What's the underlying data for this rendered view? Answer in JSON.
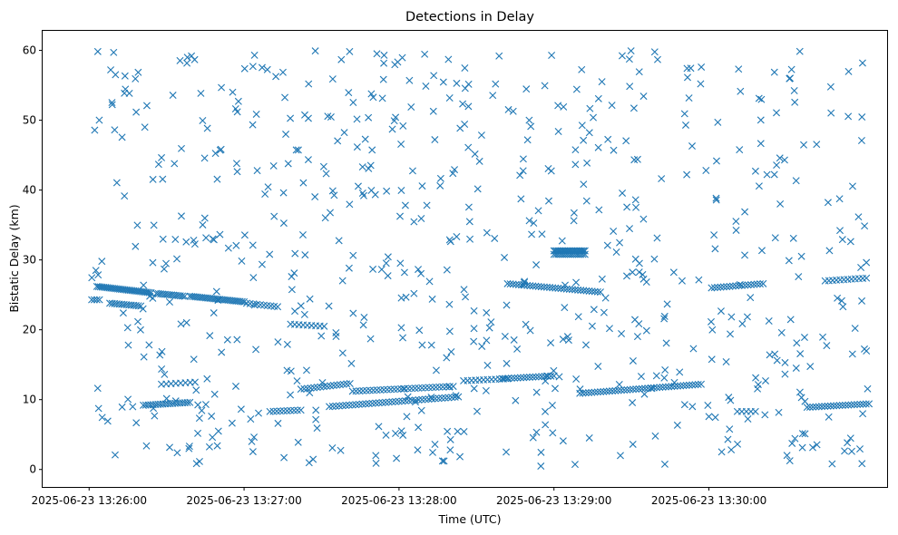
{
  "chart_data": {
    "type": "scatter",
    "title": "Detections in Delay",
    "xlabel": "Time (UTC)",
    "ylabel": "Bistatic Delay (km)",
    "x_unit": "seconds after 2025-06-23 13:25:00",
    "xlim": [
      42,
      369
    ],
    "ylim": [
      -2.5,
      62.8
    ],
    "grid": false,
    "legend": null,
    "marker": "x",
    "color": "#1f77b4",
    "xticks": [
      {
        "value": 60,
        "label": "2025-06-23 13:26:00"
      },
      {
        "value": 120,
        "label": "2025-06-23 13:27:00"
      },
      {
        "value": 180,
        "label": "2025-06-23 13:28:00"
      },
      {
        "value": 240,
        "label": "2025-06-23 13:29:00"
      },
      {
        "value": 300,
        "label": "2025-06-23 13:30:00"
      }
    ],
    "yticks": [
      {
        "value": 0,
        "label": "0"
      },
      {
        "value": 10,
        "label": "10"
      },
      {
        "value": 20,
        "label": "20"
      },
      {
        "value": 30,
        "label": "30"
      },
      {
        "value": 40,
        "label": "40"
      },
      {
        "value": 50,
        "label": "50"
      },
      {
        "value": 60,
        "label": "60"
      }
    ],
    "tracks": [
      {
        "x": [
          63,
          84
        ],
        "y": [
          26.2,
          25.3
        ],
        "n": 32
      },
      {
        "x": [
          68,
          80
        ],
        "y": [
          23.8,
          23.4
        ],
        "n": 14
      },
      {
        "x": [
          86,
          97
        ],
        "y": [
          25.2,
          24.8
        ],
        "n": 14
      },
      {
        "x": [
          99,
          120
        ],
        "y": [
          24.8,
          24.0
        ],
        "n": 28
      },
      {
        "x": [
          121,
          133
        ],
        "y": [
          23.8,
          23.3
        ],
        "n": 10
      },
      {
        "x": [
          138,
          151
        ],
        "y": [
          20.8,
          20.5
        ],
        "n": 9
      },
      {
        "x": [
          88,
          101
        ],
        "y": [
          12.2,
          12.5
        ],
        "n": 8
      },
      {
        "x": [
          81,
          99
        ],
        "y": [
          9.2,
          9.6
        ],
        "n": 20
      },
      {
        "x": [
          130,
          142
        ],
        "y": [
          8.3,
          8.5
        ],
        "n": 10
      },
      {
        "x": [
          142,
          161
        ],
        "y": [
          11.5,
          12.3
        ],
        "n": 16
      },
      {
        "x": [
          162,
          201
        ],
        "y": [
          11.2,
          11.9
        ],
        "n": 30
      },
      {
        "x": [
          153,
          203
        ],
        "y": [
          9.0,
          10.4
        ],
        "n": 40
      },
      {
        "x": [
          205,
          222
        ],
        "y": [
          12.7,
          13.0
        ],
        "n": 12
      },
      {
        "x": [
          220,
          240
        ],
        "y": [
          13.0,
          13.4
        ],
        "n": 18
      },
      {
        "x": [
          240,
          252
        ],
        "y": [
          31.3,
          31.3
        ],
        "n": 22
      },
      {
        "x": [
          240,
          252
        ],
        "y": [
          30.8,
          30.8
        ],
        "n": 16
      },
      {
        "x": [
          222,
          258
        ],
        "y": [
          26.6,
          25.4
        ],
        "n": 34
      },
      {
        "x": [
          250,
          297
        ],
        "y": [
          10.9,
          12.2
        ],
        "n": 42
      },
      {
        "x": [
          301,
          321
        ],
        "y": [
          26.0,
          26.6
        ],
        "n": 18
      },
      {
        "x": [
          345,
          361
        ],
        "y": [
          27.0,
          27.4
        ],
        "n": 12
      },
      {
        "x": [
          338,
          362
        ],
        "y": [
          8.9,
          9.4
        ],
        "n": 22
      },
      {
        "x": [
          311,
          318
        ],
        "y": [
          8.3,
          8.3
        ],
        "n": 5
      },
      {
        "x": [
          61,
          64
        ],
        "y": [
          24.3,
          24.3
        ],
        "n": 4
      }
    ],
    "scatter": {
      "count": 680,
      "seed": 1234567,
      "x_range": [
        61,
        362
      ],
      "y_range": [
        0.4,
        60.0
      ]
    }
  }
}
